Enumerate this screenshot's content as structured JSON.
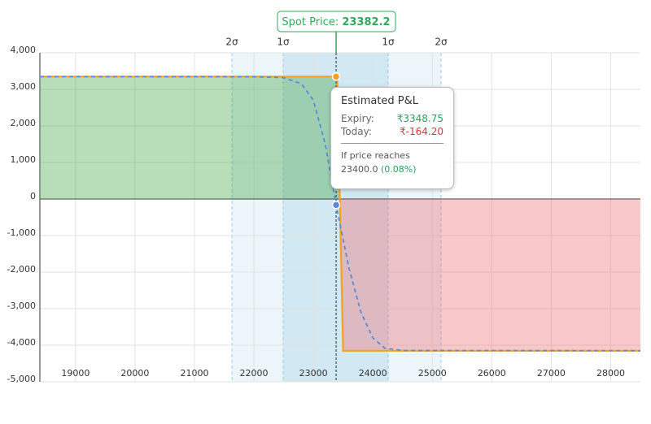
{
  "chart_data": {
    "type": "line",
    "spot_label": "Spot Price:",
    "spot_value": 23382.2,
    "xlim": [
      18400,
      28500
    ],
    "ylim": [
      -5000,
      4000
    ],
    "xticks": [
      19000,
      20000,
      21000,
      22000,
      23000,
      24000,
      25000,
      26000,
      27000,
      28000
    ],
    "yticks": [
      {
        "value": -5000,
        "label": "-5,000"
      },
      {
        "value": -4000,
        "label": "-4,000"
      },
      {
        "value": -3000,
        "label": "-3,000"
      },
      {
        "value": -2000,
        "label": "-2,000"
      },
      {
        "value": -1000,
        "label": "-1,000"
      },
      0,
      {
        "value": 1000,
        "label": "1,000"
      },
      {
        "value": 2000,
        "label": "2,000"
      },
      {
        "value": 3000,
        "label": "3,000"
      },
      {
        "value": 4000,
        "label": "4,000"
      }
    ],
    "grid": true,
    "sigma_lines": [
      {
        "label": "2σ",
        "x": 21630
      },
      {
        "label": "1σ",
        "x": 22492
      },
      {
        "label": "1σ",
        "x": 24257
      },
      {
        "label": "2σ",
        "x": 25147
      }
    ],
    "profit_fill": "rgba(76,170,80,0.4)",
    "loss_fill": "rgba(238,110,115,0.38)",
    "series": [
      {
        "color": "#f5a11c",
        "dashed": false,
        "x": [
          18400,
          23400,
          23500,
          28500
        ],
        "values": [
          3348.75,
          3348.75,
          -4151.25,
          -4151.25
        ]
      },
      {
        "color": "#5b8ad8",
        "dashed": true,
        "x": [
          18400,
          22000,
          22500,
          22800,
          23000,
          23200,
          23382.2,
          23600,
          23800,
          24000,
          24200,
          24500,
          28500
        ],
        "values": [
          3348,
          3345,
          3320,
          3150,
          2700,
          1500,
          -164.2,
          -1900,
          -3100,
          -3800,
          -4080,
          -4145,
          -4151
        ]
      }
    ],
    "tooltip": {
      "title": "Estimated P&L",
      "rows": [
        {
          "label": "Expiry:",
          "value": 3348.75,
          "value_label": "₹3348.75",
          "color": "#22a45a"
        },
        {
          "label": "Today:",
          "value": -164.2,
          "value_label": "₹-164.20",
          "color": "#e0323c"
        }
      ],
      "note": "If price reaches",
      "price_label": "23400.0",
      "change_label": "(0.08%)"
    }
  }
}
